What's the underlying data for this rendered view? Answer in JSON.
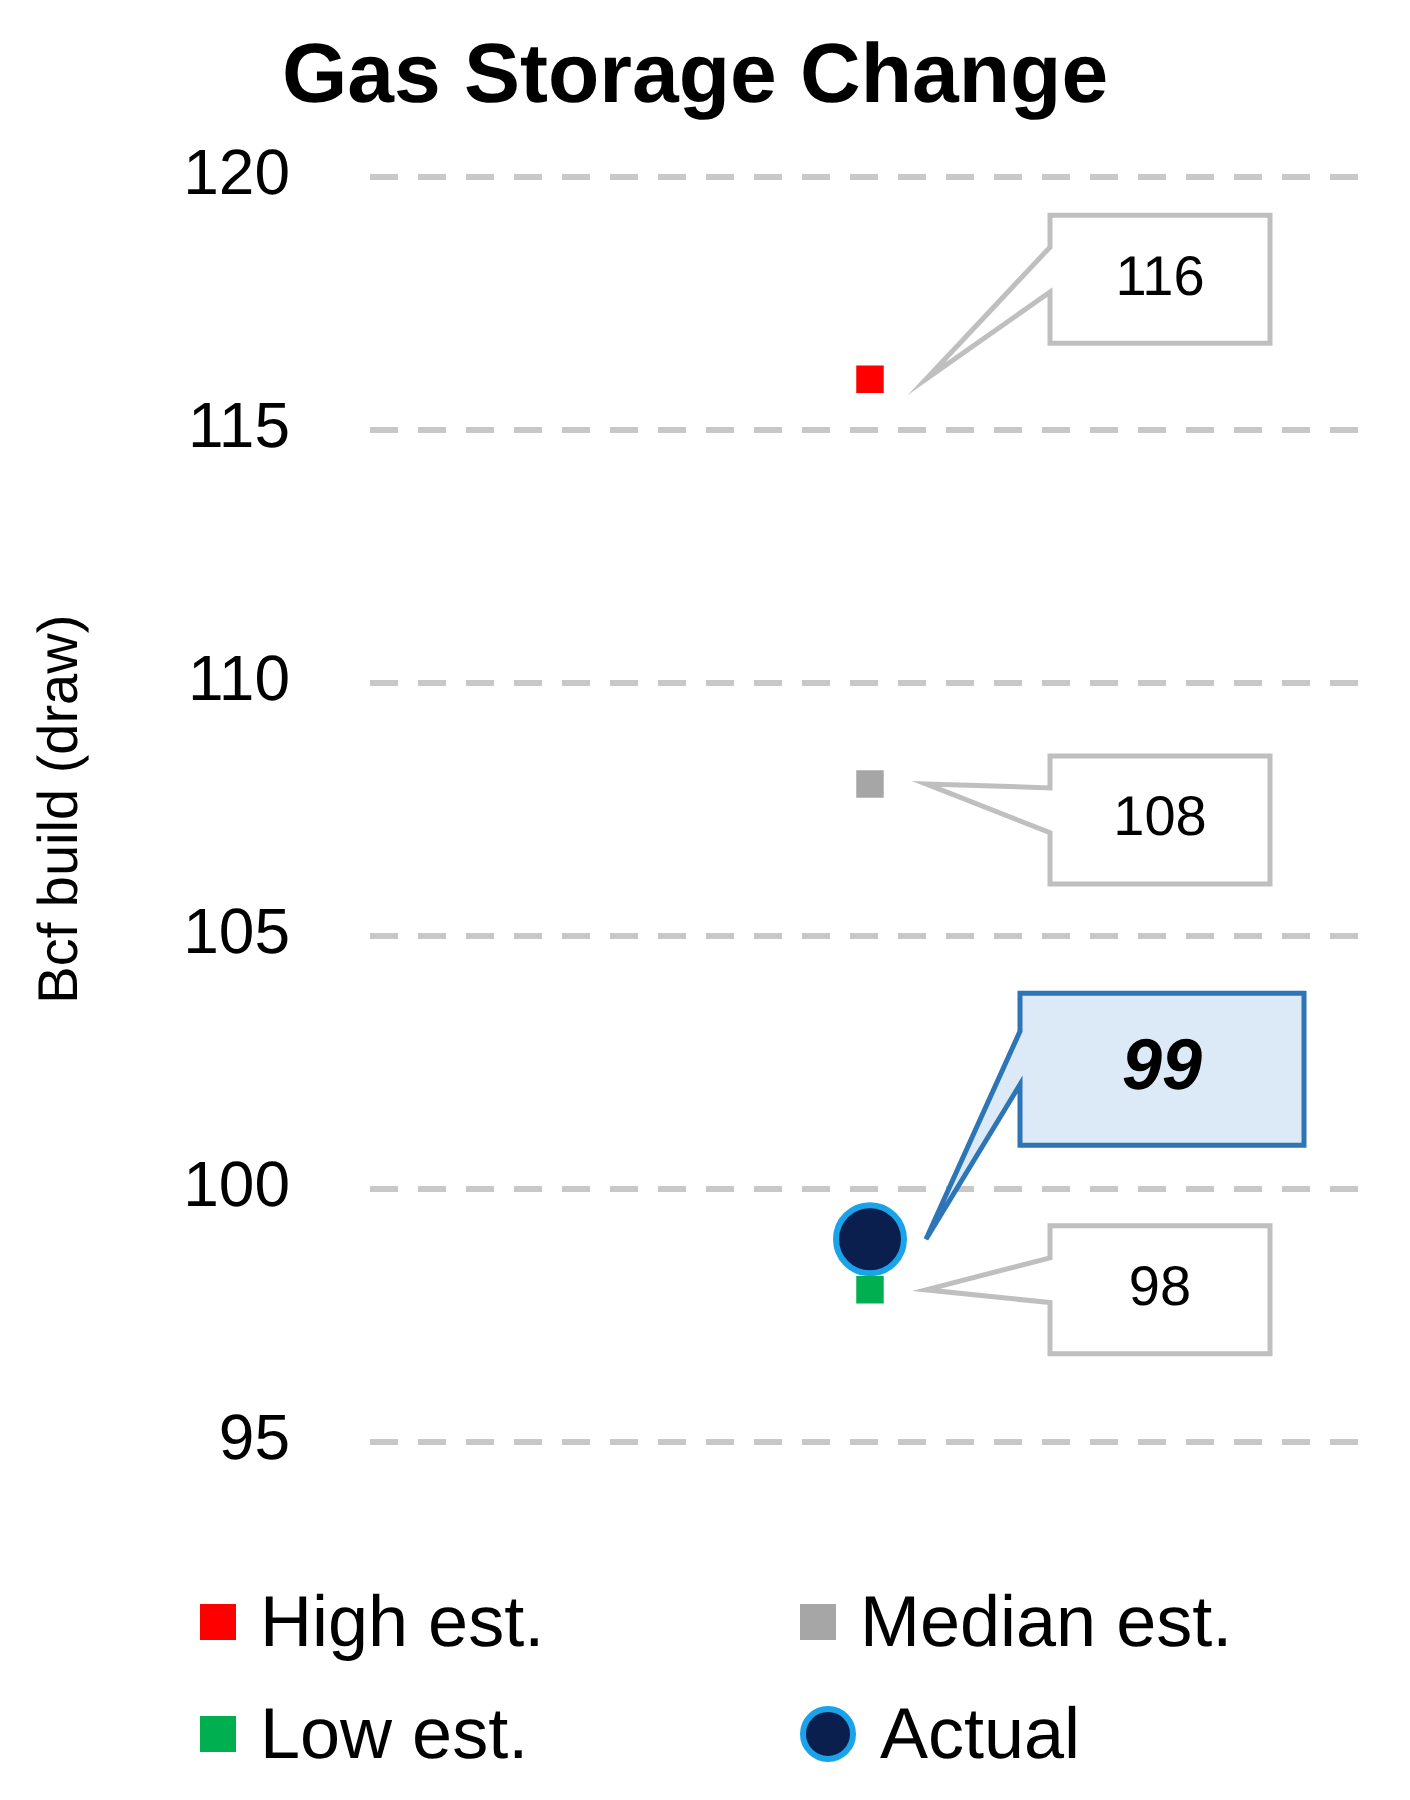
{
  "chart_data": {
    "type": "scatter",
    "title": "Gas Storage Change",
    "ylabel": "Bcf build (draw)",
    "categories": [
      null
    ],
    "ylim": [
      95,
      120
    ],
    "yticks": [
      95,
      100,
      105,
      110,
      115,
      120
    ],
    "grid": "y",
    "legend": "bottom",
    "series": [
      {
        "name": "High est.",
        "color": "#ff0000",
        "values": [
          116
        ],
        "marker": "square"
      },
      {
        "name": "Median est.",
        "color": "#a6a6a6",
        "values": [
          108
        ],
        "marker": "square"
      },
      {
        "name": "Low est.",
        "color": "#00b050",
        "values": [
          98
        ],
        "marker": "square"
      },
      {
        "name": "Actual",
        "color": "#0b1f4f",
        "values": [
          99
        ],
        "marker": "circle"
      }
    ],
    "annotations": [
      "116",
      "108",
      "98",
      "99"
    ]
  }
}
